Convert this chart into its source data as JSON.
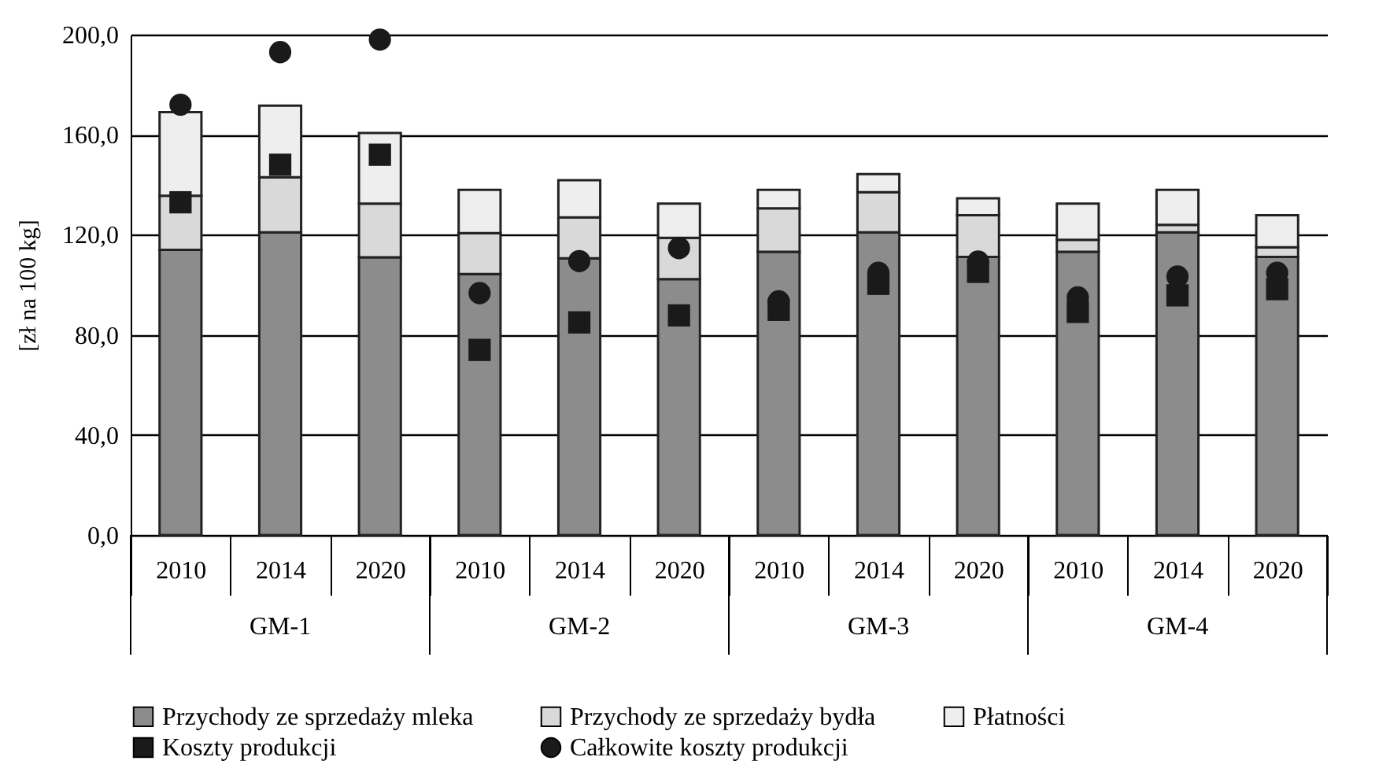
{
  "chart_data": {
    "type": "bar",
    "stacked": true,
    "ylabel": "[zł na 100 kg]",
    "categories": [
      "2010",
      "2014",
      "2020",
      "2010",
      "2014",
      "2020",
      "2010",
      "2014",
      "2020",
      "2010",
      "2014",
      "2020"
    ],
    "annotations": [
      "GM-1",
      "GM-2",
      "GM-3",
      "GM-4"
    ],
    "series": [
      {
        "name": "Przychody ze sprzedaży mleka",
        "type": "bar",
        "color": "#8c8c8c",
        "values": [
          114,
          121,
          111,
          104.3,
          110.6,
          102.3,
          113.2,
          121,
          111.2,
          113.2,
          121,
          111.2
        ]
      },
      {
        "name": "Przychody ze sprzedaży bydła",
        "type": "bar",
        "color": "#d9d9d9",
        "values": [
          21.6,
          22,
          21.5,
          16.4,
          16.4,
          16.5,
          17.4,
          16,
          16.6,
          4.8,
          3,
          3.8
        ]
      },
      {
        "name": "Płatności",
        "type": "bar",
        "color": "#eeeeee",
        "values": [
          33.4,
          28.6,
          28.2,
          17.3,
          14.8,
          13.7,
          7.4,
          7.3,
          6.8,
          14.5,
          14,
          12.8
        ]
      },
      {
        "name": "Koszty produkcji",
        "type": "scatter",
        "marker": "square",
        "color": "#1a1a1a",
        "values": [
          133,
          148,
          152,
          74,
          85,
          87.8,
          90,
          100.4,
          105.2,
          89.2,
          95.8,
          98.3
        ]
      },
      {
        "name": "Całkowite koszty produkcji",
        "type": "scatter",
        "marker": "circle",
        "color": "#1a1a1a",
        "values": [
          172,
          193,
          198,
          96.7,
          109.5,
          114.7,
          93.4,
          104.8,
          109.3,
          95,
          103.3,
          104.8
        ]
      }
    ],
    "ylim": [
      0,
      200
    ],
    "yticks": [
      {
        "value": 0,
        "label": "0,0"
      },
      {
        "value": 40,
        "label": "40,0"
      },
      {
        "value": 80,
        "label": "80,0"
      },
      {
        "value": 120,
        "label": "120,0"
      },
      {
        "value": 160,
        "label": "160,0"
      },
      {
        "value": 200,
        "label": "200,0"
      }
    ],
    "grid": "y",
    "legend": "bottom"
  }
}
